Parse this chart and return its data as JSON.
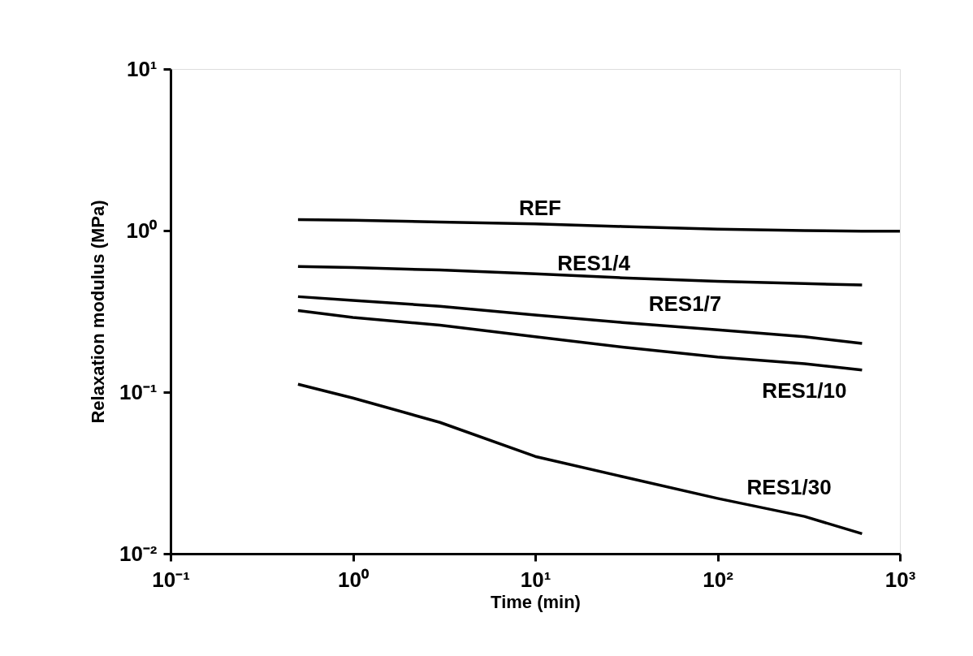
{
  "chart_data": {
    "type": "line",
    "xlabel": "Time (min)",
    "ylabel": "Relaxation modulus (MPa)",
    "log": "xy",
    "grid": false,
    "legend": false,
    "marker": "none",
    "line_style": "solid",
    "xlim": [
      0.1,
      1000
    ],
    "ylim": [
      0.01,
      10
    ],
    "xticks": [
      {
        "value": 0.1,
        "label": "10⁻¹"
      },
      {
        "value": 1,
        "label": "10⁰"
      },
      {
        "value": 10,
        "label": "10¹"
      },
      {
        "value": 100,
        "label": "10²"
      },
      {
        "value": 1000,
        "label": "10³"
      }
    ],
    "yticks": [
      {
        "value": 0.01,
        "label": "10⁻²"
      },
      {
        "value": 0.1,
        "label": "10⁻¹"
      },
      {
        "value": 1,
        "label": "10⁰"
      },
      {
        "value": 10,
        "label": "10¹"
      }
    ],
    "series": [
      {
        "name": "REF",
        "color": "#000000",
        "x": [
          0.5,
          1,
          3,
          10,
          30,
          100,
          300,
          620,
          1000
        ],
        "values": [
          1.17,
          1.16,
          1.13,
          1.1,
          1.06,
          1.02,
          1.0,
          0.99,
          0.99
        ]
      },
      {
        "name": "RES1/4",
        "color": "#000000",
        "x": [
          0.5,
          1,
          3,
          10,
          30,
          100,
          300,
          620
        ],
        "values": [
          0.6,
          0.59,
          0.57,
          0.54,
          0.51,
          0.485,
          0.47,
          0.46
        ]
      },
      {
        "name": "RES1/7",
        "color": "#000000",
        "x": [
          0.5,
          1,
          3,
          10,
          30,
          100,
          300,
          620
        ],
        "values": [
          0.39,
          0.37,
          0.34,
          0.3,
          0.27,
          0.243,
          0.22,
          0.2
        ]
      },
      {
        "name": "RES1/10",
        "color": "#000000",
        "x": [
          0.5,
          1,
          3,
          10,
          30,
          100,
          300,
          620
        ],
        "values": [
          0.32,
          0.29,
          0.26,
          0.22,
          0.19,
          0.165,
          0.15,
          0.137
        ]
      },
      {
        "name": "RES1/30",
        "color": "#000000",
        "x": [
          0.5,
          1,
          3,
          10,
          30,
          100,
          300,
          620
        ],
        "values": [
          0.112,
          0.092,
          0.065,
          0.04,
          0.03,
          0.022,
          0.017,
          0.0133
        ]
      }
    ]
  }
}
